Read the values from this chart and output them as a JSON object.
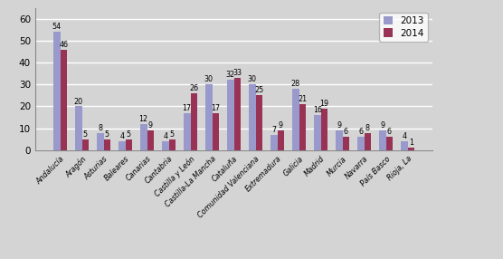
{
  "categories": [
    "Andalucía",
    "Aragón",
    "Asturias",
    "Baleares",
    "Canarias",
    "Cantabria",
    "Castilla y León",
    "Castilla-La Mancha",
    "Cataluña",
    "Comunidad Valenciana",
    "Extremadura",
    "Galicia",
    "Madrid",
    "Murcia",
    "Navarra",
    "País Basco",
    "Rioja, La"
  ],
  "values_2013": [
    54,
    20,
    8,
    4,
    12,
    4,
    17,
    30,
    32,
    30,
    7,
    28,
    16,
    9,
    6,
    9,
    4
  ],
  "values_2014": [
    46,
    5,
    5,
    5,
    9,
    5,
    26,
    17,
    33,
    25,
    9,
    21,
    19,
    6,
    8,
    6,
    1
  ],
  "color_2013": "#9999cc",
  "color_2014": "#993355",
  "legend_labels": [
    "2013",
    "2014"
  ],
  "ylim": [
    0,
    65
  ],
  "yticks": [
    0,
    10,
    20,
    30,
    40,
    50,
    60
  ],
  "bar_width": 0.32,
  "background_color": "#d4d4d4",
  "fontsize_labels": 5.8,
  "fontsize_ticks": 7.5,
  "fontsize_legend": 7.5
}
